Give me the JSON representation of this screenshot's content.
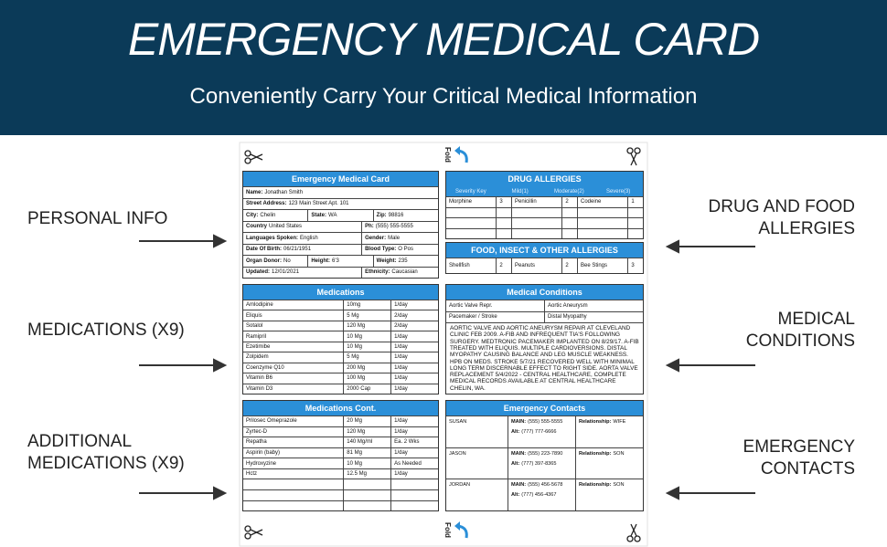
{
  "header": {
    "title": "EMERGENCY MEDICAL CARD",
    "subtitle": "Conveniently Carry Your Critical Medical Information"
  },
  "side_labels": {
    "left": [
      {
        "lines": [
          "PERSONAL INFO"
        ]
      },
      {
        "lines": [
          "MEDICATIONS (X9)"
        ]
      },
      {
        "lines": [
          "ADDITIONAL",
          "MEDICATIONS (X9)"
        ]
      }
    ],
    "right": [
      {
        "lines": [
          "DRUG AND FOOD",
          "ALLERGIES"
        ]
      },
      {
        "lines": [
          "MEDICAL",
          "CONDITIONS"
        ]
      },
      {
        "lines": [
          "EMERGENCY",
          "CONTACTS"
        ]
      }
    ]
  },
  "card": {
    "fold_label": "Fold",
    "personal": {
      "title": "Emergency Medical Card",
      "rows": [
        [
          {
            "label": "Name:",
            "value": "Jonathan Smith"
          }
        ],
        [
          {
            "label": "Street Address:",
            "value": "123 Main Street  Apt. 101"
          }
        ],
        [
          {
            "label": "City:",
            "value": "Chelin"
          },
          {
            "label": "State:",
            "value": "WA"
          },
          {
            "label": "Zip:",
            "value": "98816"
          }
        ],
        [
          {
            "label": "Country",
            "value": "United States"
          },
          {
            "label": "Ph:",
            "value": "(555) 555-5555"
          }
        ],
        [
          {
            "label": "Languages Spoken:",
            "value": "English"
          },
          {
            "label": "Gender:",
            "value": "Male"
          }
        ],
        [
          {
            "label": "Date Of Birth:",
            "value": "06/21/1951"
          },
          {
            "label": "Blood Type:",
            "value": "O Pos"
          }
        ],
        [
          {
            "label": "Organ Donor:",
            "value": "No"
          },
          {
            "label": "Height:",
            "value": "6'3"
          },
          {
            "label": "Weight:",
            "value": "235"
          }
        ],
        [
          {
            "label": "Updated:",
            "value": "12/01/2021"
          },
          {
            "label": "Ethnicity:",
            "value": "Caucasian"
          }
        ]
      ]
    },
    "drug_allergies": {
      "title": "DRUG ALLERGIES",
      "key": [
        "Severity Key",
        "Mild(1)",
        "Moderate(2)",
        "Severe(3)"
      ],
      "rows": [
        [
          "Morphine",
          3,
          "Penicillin",
          2,
          "Codeine",
          1
        ]
      ]
    },
    "food_allergies": {
      "title": "FOOD, INSECT & OTHER ALLERGIES",
      "rows": [
        [
          "Shellfish",
          2,
          "Peanuts",
          2,
          "Bee Stings",
          3
        ]
      ]
    },
    "medications": {
      "title": "Medications",
      "rows": [
        [
          "Amlodipine",
          "10mg",
          "1/day"
        ],
        [
          "Eliquis",
          "5 Mg",
          "2/day"
        ],
        [
          "Sotalol",
          "120 Mg",
          "2/day"
        ],
        [
          "Ramipril",
          "10 Mg",
          "1/day"
        ],
        [
          "Ezetimibe",
          "10 Mg",
          "1/day"
        ],
        [
          "Zolpidem",
          "5 Mg",
          "1/day"
        ],
        [
          "Coenzyme Q10",
          "200 Mg",
          "1/day"
        ],
        [
          "Vitamin B6",
          "100 Mg",
          "1/day"
        ],
        [
          "Vitamin D3",
          "2000 Cap",
          "1/day"
        ]
      ]
    },
    "medical_conditions": {
      "title": "Medical Conditions",
      "rows": [
        [
          "Aortic Valve Repr.",
          "Aortic Aneurysm"
        ],
        [
          "Pacemaker / Stroke",
          "Distal Myopathy"
        ]
      ],
      "notes": "AORTIC VALVE AND AORTIC ANEURYSM REPAIR AT CLEVELAND CLINIC FEB 2009. A-FIB AND INFREQUENT TIA'S FOLLOWING SURGERY. MEDTRONIC PACEMAKER IMPLANTED ON 8/29/17. A-FIB TREATED WITH ELIQUIS. MULTIPLE CARDIOVERSIONS. DISTAL MYOPATHY CAUSING BALANCE AND LEG MUSCLE WEAKNESS. HPB ON MEDS. STROKE 5/7/21 RECOVERED WELL WITH MINIMAL LONG TERM DISCERNABLE EFFECT TO RIGHT SIDE. AORTA VALVE REPLACEMENT 5/4/2022 - CENTRAL HEALTHCARE, COMPLETE MEDICAL RECORDS AVAILABLE AT CENTRAL HEALTHCARE CHELIN, WA."
    },
    "medications_cont": {
      "title": "Medications Cont.",
      "rows": [
        [
          "Prilosec Omeprazole",
          "20 Mg",
          "1/day"
        ],
        [
          "Zyrtec-D",
          "120 Mg",
          "1/day"
        ],
        [
          "Repatha",
          "140 Mg/ml",
          "Ea. 2 Wks"
        ],
        [
          "Aspirin (baby)",
          "81 Mg",
          "1/day"
        ],
        [
          "Hydroxyzine",
          "10 Mg",
          "As Needed"
        ],
        [
          "Hctz",
          "12.5 Mg",
          "1/day"
        ]
      ]
    },
    "emergency_contacts": {
      "title": "Emergency Contacts",
      "contacts": [
        {
          "name": "SUSAN",
          "main_label": "MAIN:",
          "main": "(555) 555-5555",
          "alt_label": "Alt:",
          "alt": "(777) 777-6666",
          "relationship_label": "Relationship:",
          "relationship": "WIFE"
        },
        {
          "name": "JASON",
          "main_label": "MAIN:",
          "main": "(555) 223-7890",
          "alt_label": "Alt:",
          "alt": "(777) 397-8365",
          "relationship_label": "Relationship:",
          "relationship": "SON"
        },
        {
          "name": "JORDAN",
          "main_label": "MAIN:",
          "main": "(555) 456-5678",
          "alt_label": "Alt:",
          "alt": "(777) 456-4367",
          "relationship_label": "Relationship:",
          "relationship": "SON"
        }
      ]
    }
  }
}
